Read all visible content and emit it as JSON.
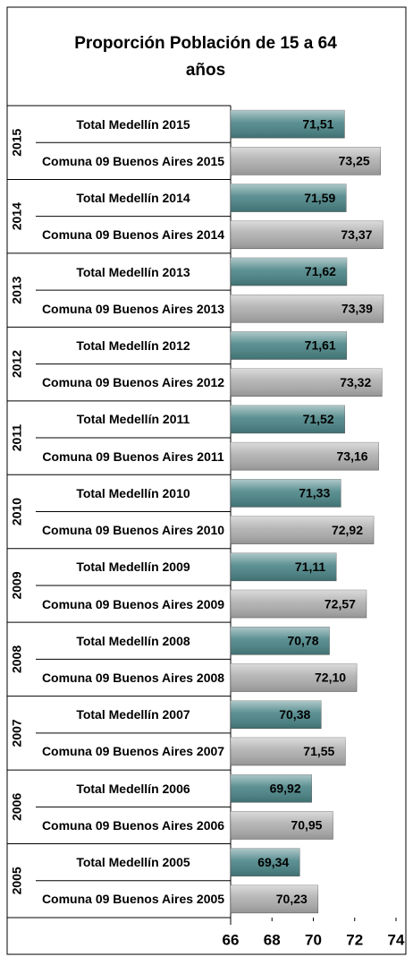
{
  "chart_data": {
    "type": "bar",
    "orientation": "horizontal",
    "title": "Proporción Población de 15 a 64 años",
    "groups": [
      "2015",
      "2014",
      "2013",
      "2012",
      "2011",
      "2010",
      "2009",
      "2008",
      "2007",
      "2006",
      "2005"
    ],
    "categories": [
      "Total Medellín 2015",
      "Comuna 09 Buenos Aires 2015",
      "Total Medellín 2014",
      "Comuna 09 Buenos Aires 2014",
      "Total Medellín 2013",
      "Comuna 09 Buenos Aires 2013",
      "Total Medellín 2012",
      "Comuna 09 Buenos Aires 2012",
      "Total Medellín 2011",
      "Comuna 09 Buenos Aires 2011",
      "Total Medellín 2010",
      "Comuna 09 Buenos Aires 2010",
      "Total Medellín 2009",
      "Comuna 09 Buenos Aires 2009",
      "Total Medellín 2008",
      "Comuna 09 Buenos Aires 2008",
      "Total Medellín 2007",
      "Comuna 09 Buenos Aires 2007",
      "Total Medellín 2006",
      "Comuna 09 Buenos Aires 2006",
      "Total Medellín 2005",
      "Comuna 09 Buenos Aires 2005"
    ],
    "values": [
      71.51,
      73.25,
      71.59,
      73.37,
      71.62,
      73.39,
      71.61,
      73.32,
      71.52,
      73.16,
      71.33,
      72.92,
      71.11,
      72.57,
      70.78,
      72.1,
      70.38,
      71.55,
      69.92,
      70.95,
      69.34,
      70.23
    ],
    "value_labels": [
      "71,51",
      "73,25",
      "71,59",
      "73,37",
      "71,62",
      "73,39",
      "71,61",
      "73,32",
      "71,52",
      "73,16",
      "71,33",
      "72,92",
      "71,11",
      "72,57",
      "70,78",
      "72,10",
      "70,38",
      "71,55",
      "69,92",
      "70,95",
      "69,34",
      "70,23"
    ],
    "colors": [
      "#4a8486",
      "#aeaeae"
    ],
    "xlim": [
      66,
      74
    ],
    "xticks": [
      66,
      68,
      70,
      72,
      74
    ]
  }
}
